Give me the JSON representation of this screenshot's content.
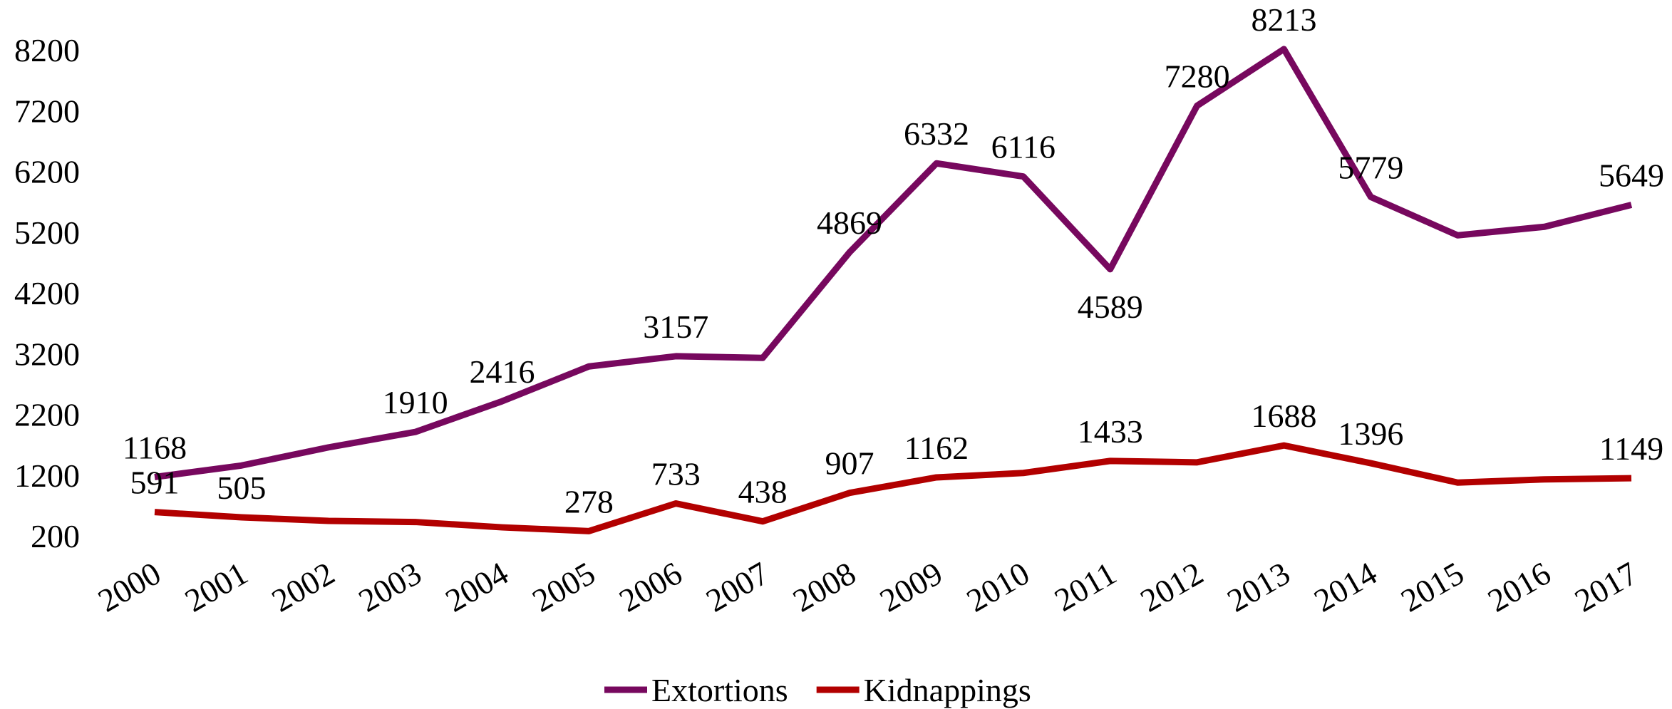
{
  "chart_data": {
    "type": "line",
    "categories": [
      "2000",
      "2001",
      "2002",
      "2003",
      "2004",
      "2005",
      "2006",
      "2007",
      "2008",
      "2009",
      "2010",
      "2011",
      "2012",
      "2013",
      "2014",
      "2015",
      "2016",
      "2017"
    ],
    "ylim": [
      200,
      8200
    ],
    "yticks": [
      200,
      1200,
      2200,
      3200,
      4200,
      5200,
      6200,
      7200,
      8200
    ],
    "grid": false,
    "legend": "bottom",
    "series": [
      {
        "name": "Extortions",
        "color": "#77085e",
        "values": [
          1168,
          1358,
          1656,
          1910,
          2416,
          2989,
          3157,
          3130,
          4869,
          6332,
          6116,
          4589,
          7280,
          8213,
          5779,
          5147,
          5288,
          5649
        ],
        "value_labels": [
          "1168",
          null,
          null,
          "1910",
          "2416",
          null,
          "3157",
          null,
          "4869",
          "6332",
          "6116",
          "4589",
          "7280",
          "8213",
          "5779",
          null,
          null,
          "5649"
        ]
      },
      {
        "name": "Kidnappings",
        "color": "#b20000",
        "values": [
          591,
          505,
          446,
          428,
          340,
          278,
          733,
          438,
          907,
          1162,
          1235,
          1433,
          1410,
          1688,
          1396,
          1077,
          1130,
          1149
        ],
        "value_labels": [
          "591",
          "505",
          null,
          null,
          null,
          "278",
          "733",
          "438",
          "907",
          "1162",
          null,
          "1433",
          null,
          "1688",
          "1396",
          null,
          null,
          "1149"
        ]
      }
    ]
  }
}
